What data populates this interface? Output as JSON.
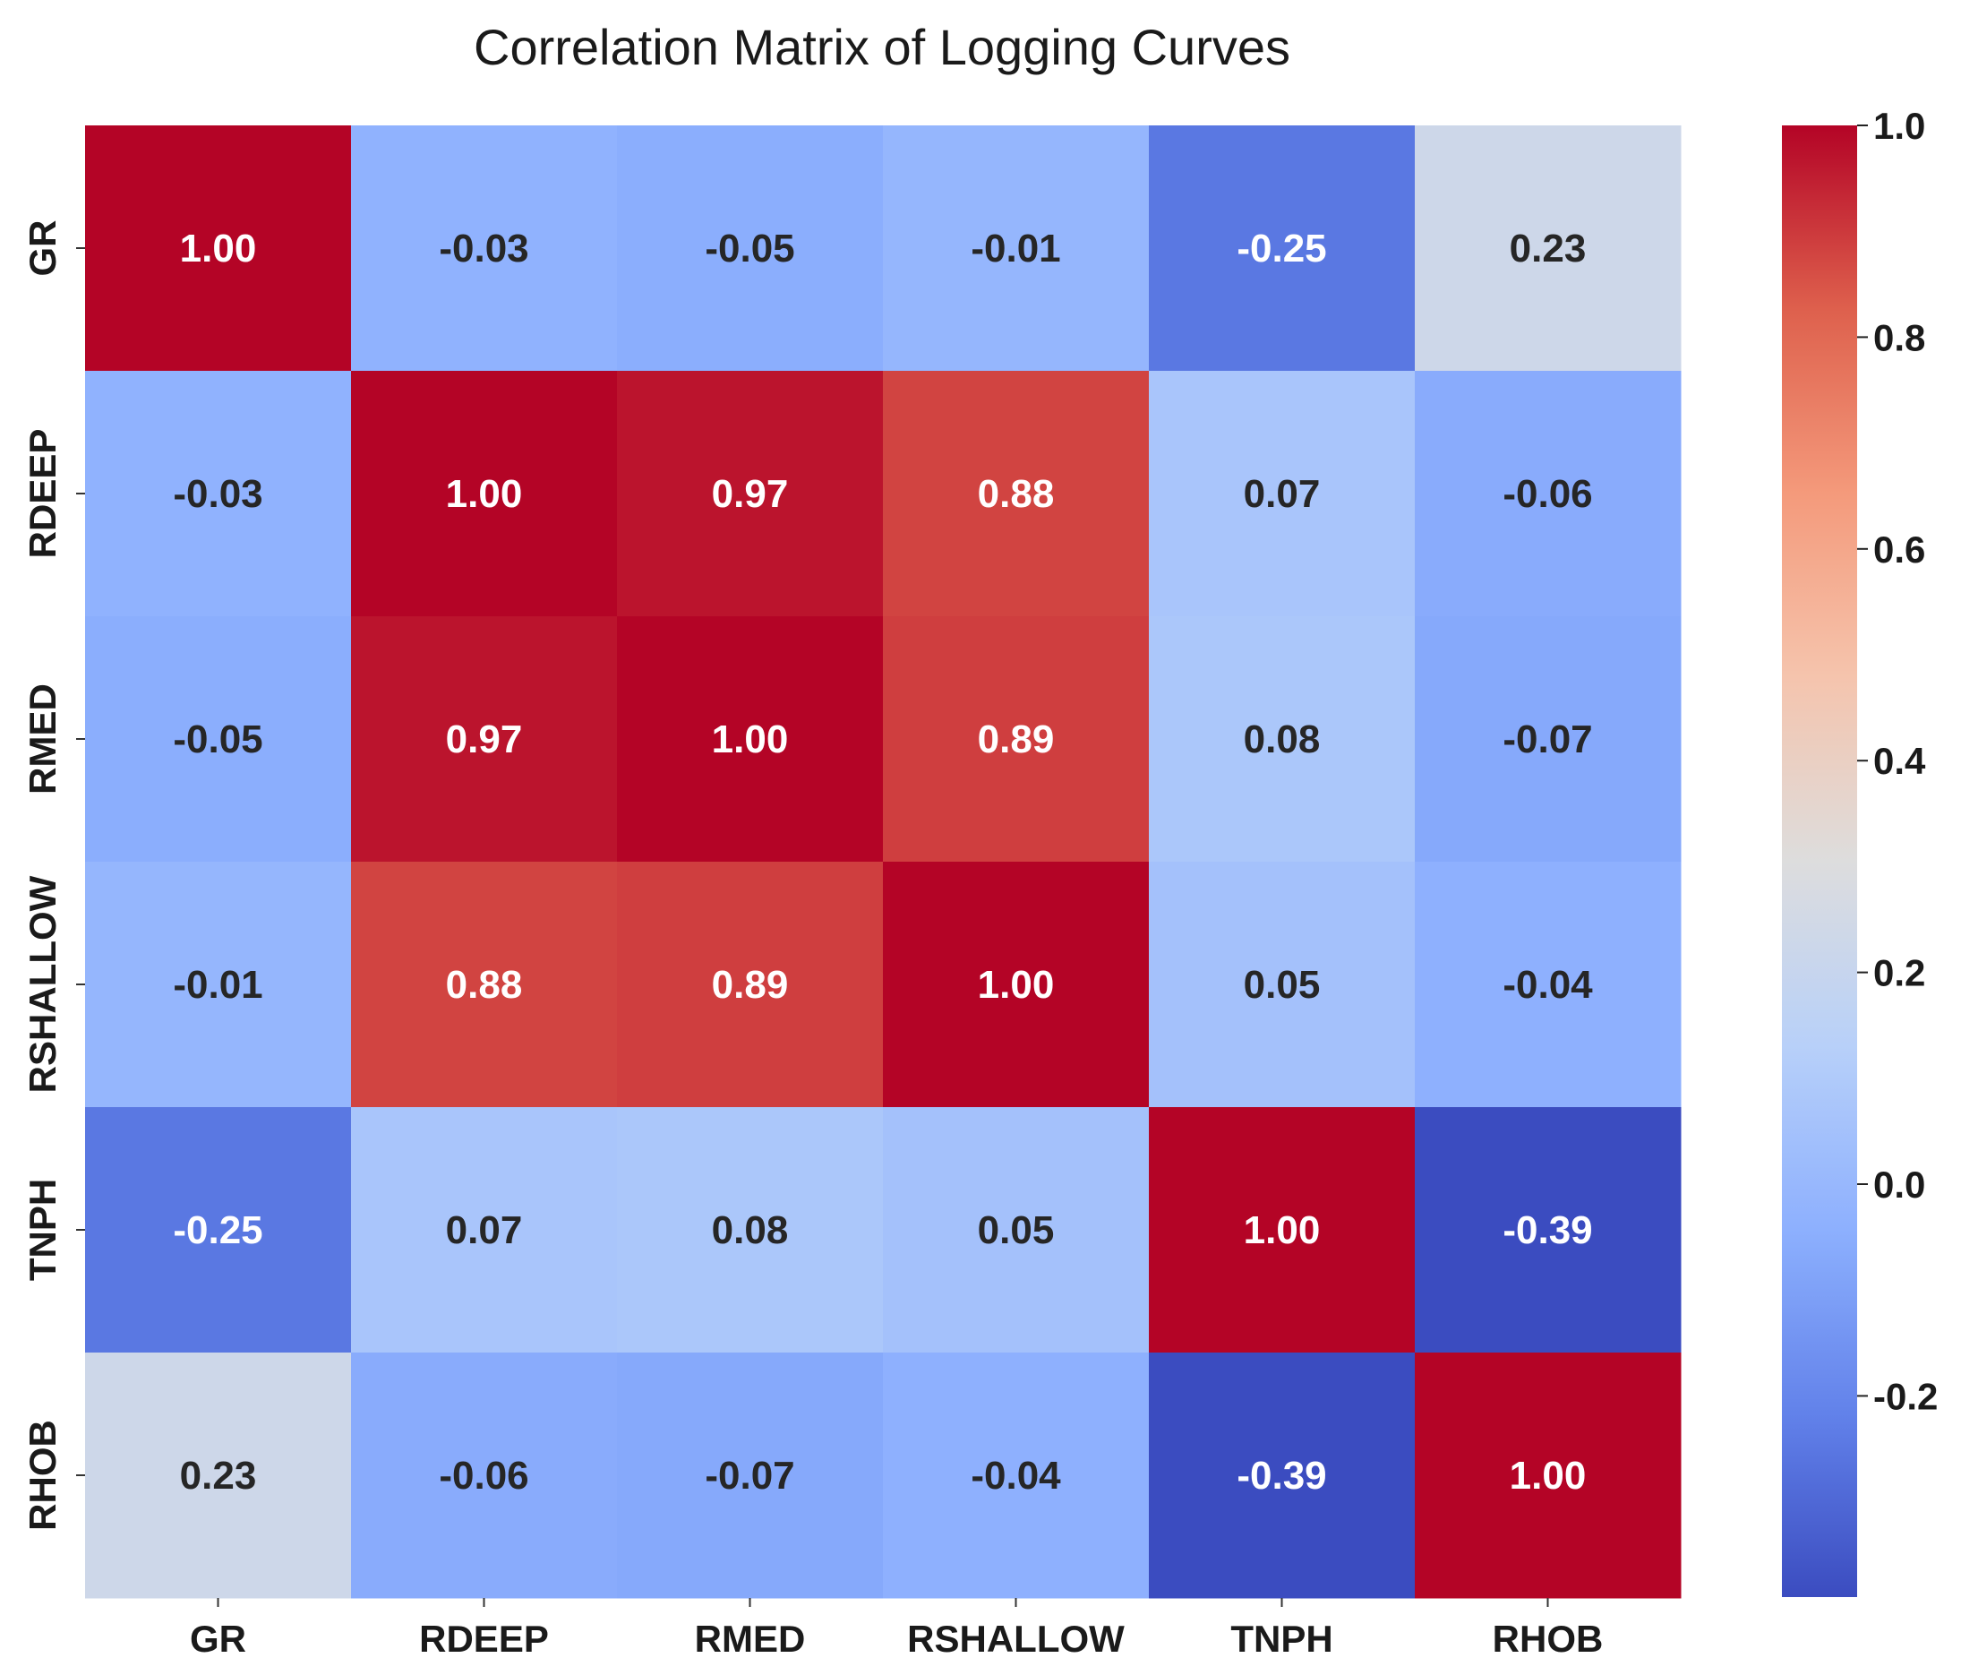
{
  "chart_data": {
    "type": "heatmap",
    "title": "Correlation Matrix of Logging Curves",
    "row_labels": [
      "GR",
      "RDEEP",
      "RMED",
      "RSHALLOW",
      "TNPH",
      "RHOB"
    ],
    "col_labels": [
      "GR",
      "RDEEP",
      "RMED",
      "RSHALLOW",
      "TNPH",
      "RHOB"
    ],
    "values": [
      [
        1.0,
        -0.03,
        -0.05,
        -0.01,
        -0.25,
        0.23
      ],
      [
        -0.03,
        1.0,
        0.97,
        0.88,
        0.07,
        -0.06
      ],
      [
        -0.05,
        0.97,
        1.0,
        0.89,
        0.08,
        -0.07
      ],
      [
        -0.01,
        0.88,
        0.89,
        1.0,
        0.05,
        -0.04
      ],
      [
        -0.25,
        0.07,
        0.08,
        0.05,
        1.0,
        -0.39
      ],
      [
        0.23,
        -0.06,
        -0.07,
        -0.04,
        -0.39,
        1.0
      ]
    ],
    "annotations": [
      [
        "1.00",
        "-0.03",
        "-0.05",
        "-0.01",
        "-0.25",
        "0.23"
      ],
      [
        "-0.03",
        "1.00",
        "0.97",
        "0.88",
        "0.07",
        "-0.06"
      ],
      [
        "-0.05",
        "0.97",
        "1.00",
        "0.89",
        "0.08",
        "-0.07"
      ],
      [
        "-0.01",
        "0.88",
        "0.89",
        "1.00",
        "0.05",
        "-0.04"
      ],
      [
        "-0.25",
        "0.07",
        "0.08",
        "0.05",
        "1.00",
        "-0.39"
      ],
      [
        "0.23",
        "-0.06",
        "-0.07",
        "-0.04",
        "-0.39",
        "1.00"
      ]
    ],
    "colormap": "coolwarm",
    "vmin": -0.39,
    "vmax": 1.0,
    "colorbar_ticks": [
      1.0,
      0.8,
      0.6,
      0.4,
      0.2,
      0.0,
      -0.2
    ],
    "colorbar_tick_labels": [
      "1.0",
      "0.8",
      "0.6",
      "0.4",
      "0.2",
      "0.0",
      "-0.2"
    ],
    "colorbar_placement": "right"
  }
}
